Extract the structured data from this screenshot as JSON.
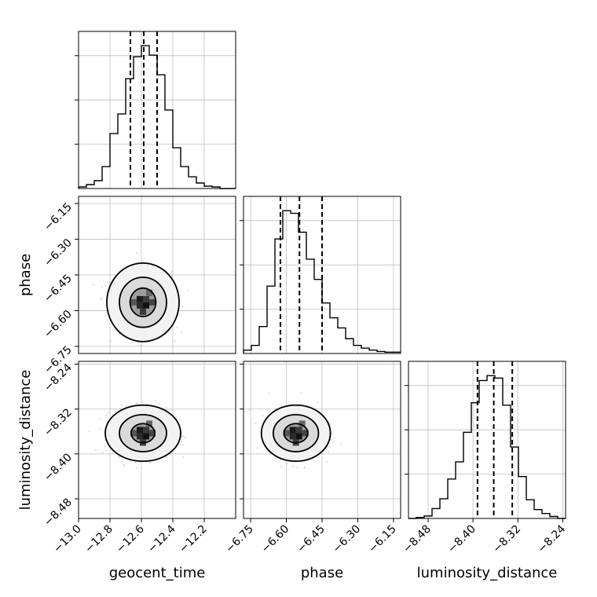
{
  "chart_data": {
    "type": "corner",
    "parameters": [
      "geocent_time",
      "phase",
      "luminosity_distance"
    ],
    "grid": true,
    "colors": {
      "line": "#000000",
      "grid": "#c0c0c0",
      "quantile": "#000000",
      "points": "#9a9a9a"
    },
    "quantiles_dashed": {
      "geocent_time": [
        -12.67,
        -12.585,
        -12.5
      ],
      "phase": [
        -6.625,
        -6.545,
        -6.45
      ],
      "luminosity_distance": [
        -8.392,
        -8.363,
        -8.33
      ]
    },
    "axes": {
      "geocent_time": {
        "range": [
          -13.0,
          -12.0
        ],
        "ticks": [
          "−13.0",
          "−12.8",
          "−12.6",
          "−12.4",
          "−12.2"
        ],
        "tick_values": [
          -13.0,
          -12.8,
          -12.6,
          -12.4,
          -12.2
        ]
      },
      "phase": {
        "range": [
          -6.78,
          -6.12
        ],
        "ticks": [
          "−6.75",
          "−6.60",
          "−6.45",
          "−6.30",
          "−6.15"
        ],
        "tick_values": [
          -6.75,
          -6.6,
          -6.45,
          -6.3,
          -6.15
        ]
      },
      "luminosity_distance": {
        "range": [
          -8.515,
          -8.235
        ],
        "ticks": [
          "−8.48",
          "−8.40",
          "−8.32",
          "−8.24"
        ],
        "tick_values": [
          -8.48,
          -8.4,
          -8.32,
          -8.24
        ]
      }
    },
    "histograms": {
      "geocent_time": {
        "bin_edges": [
          -13.0,
          -12.95,
          -12.9,
          -12.85,
          -12.8,
          -12.75,
          -12.7,
          -12.65,
          -12.6,
          -12.55,
          -12.5,
          -12.45,
          -12.4,
          -12.35,
          -12.3,
          -12.25,
          -12.2,
          -12.15,
          -12.1,
          -12.05,
          -12.0
        ],
        "counts": [
          2,
          5,
          10,
          28,
          70,
          95,
          140,
          168,
          182,
          170,
          145,
          100,
          52,
          28,
          15,
          7,
          3,
          2,
          0,
          0
        ]
      },
      "phase": {
        "bin_edges": [
          -6.78,
          -6.747,
          -6.714,
          -6.681,
          -6.648,
          -6.615,
          -6.582,
          -6.549,
          -6.516,
          -6.483,
          -6.45,
          -6.417,
          -6.384,
          -6.351,
          -6.318,
          -6.285,
          -6.252,
          -6.219,
          -6.186,
          -6.153,
          -6.12
        ],
        "counts": [
          5,
          12,
          40,
          100,
          170,
          212,
          208,
          180,
          140,
          110,
          75,
          53,
          38,
          22,
          12,
          8,
          5,
          3,
          2,
          2
        ]
      },
      "luminosity_distance": {
        "bin_edges": [
          -8.515,
          -8.501,
          -8.487,
          -8.473,
          -8.459,
          -8.445,
          -8.431,
          -8.417,
          -8.403,
          -8.389,
          -8.375,
          -8.361,
          -8.347,
          -8.333,
          -8.319,
          -8.305,
          -8.291,
          -8.277,
          -8.263,
          -8.249,
          -8.235
        ],
        "counts": [
          0,
          2,
          5,
          20,
          40,
          80,
          115,
          175,
          235,
          280,
          290,
          285,
          230,
          145,
          85,
          38,
          18,
          10,
          4,
          0
        ]
      }
    },
    "joint_2d": [
      {
        "x": "geocent_time",
        "y": "phase",
        "mean": [
          -12.59,
          -6.565
        ],
        "contour_levels": [
          {
            "rx": 0.082,
            "ry": 0.06
          },
          {
            "rx": 0.15,
            "ry": 0.105
          },
          {
            "rx": 0.23,
            "ry": 0.165
          }
        ]
      },
      {
        "x": "geocent_time",
        "y": "luminosity_distance",
        "mean": [
          -12.59,
          -8.363
        ],
        "contour_levels": [
          {
            "rx": 0.075,
            "ry": 0.017
          },
          {
            "rx": 0.15,
            "ry": 0.033
          },
          {
            "rx": 0.24,
            "ry": 0.05
          }
        ]
      },
      {
        "x": "phase",
        "y": "luminosity_distance",
        "mean": [
          -6.56,
          -8.363
        ],
        "contour_levels": [
          {
            "rx": 0.05,
            "ry": 0.017
          },
          {
            "rx": 0.095,
            "ry": 0.033
          },
          {
            "rx": 0.145,
            "ry": 0.05
          }
        ]
      }
    ]
  }
}
